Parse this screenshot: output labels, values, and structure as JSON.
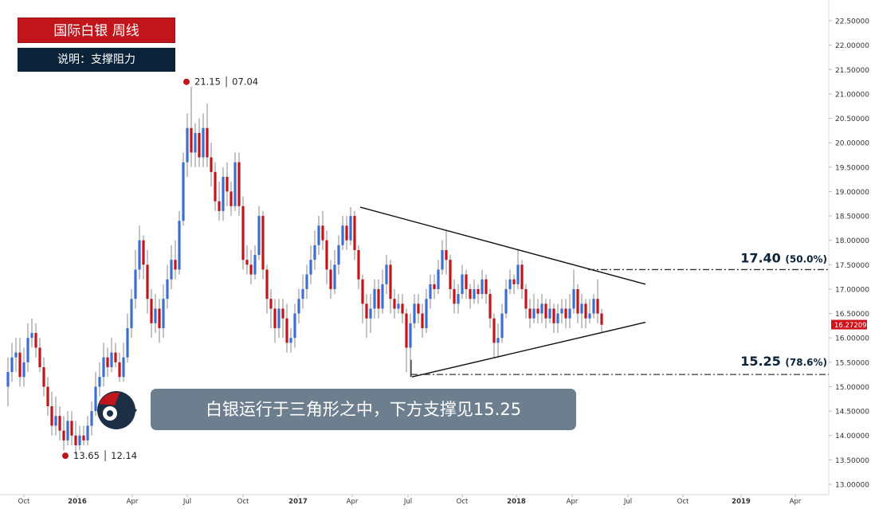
{
  "header": {
    "title": "国际白银  周线",
    "subtitle": "说明：支撑阻力"
  },
  "callout": {
    "text": "白银运行于三角形之中，下方支撑见15.25"
  },
  "colors": {
    "up": "#3d6fd0",
    "down": "#c0151b",
    "title_bg": "#c0151b",
    "subtitle_bg": "#0b2338",
    "callout_bg": "#6d7f8f",
    "price_tag": "#d0121a"
  },
  "chart_data": {
    "type": "candlestick",
    "yaxis": {
      "ylim": [
        12.8,
        22.7
      ],
      "ticks": [
        "13.00000",
        "13.50000",
        "14.00000",
        "14.50000",
        "15.00000",
        "15.50000",
        "16.00000",
        "16.50000",
        "17.00000",
        "17.50000",
        "18.00000",
        "18.50000",
        "19.00000",
        "19.50000",
        "20.00000",
        "20.50000",
        "21.00000",
        "21.50000",
        "22.00000",
        "22.50000"
      ]
    },
    "xaxis": {
      "labels": [
        "Oct",
        "2016",
        "Apr",
        "Jul",
        "Oct",
        "2017",
        "Apr",
        "Jul",
        "Oct",
        "2018",
        "Apr",
        "Jul",
        "Oct",
        "2019",
        "Apr"
      ]
    },
    "last_price": "16.27209",
    "annotations": [
      {
        "label": "21.15 │ 07.04",
        "value": 21.15
      },
      {
        "label": "13.65 │ 12.14",
        "value": 13.65
      }
    ],
    "levels": [
      {
        "price": "17.40",
        "pct": "(50.0%)",
        "value": 17.4
      },
      {
        "price": "15.25",
        "pct": "(78.6%)",
        "value": 15.25
      }
    ],
    "triangle": {
      "upper": {
        "from": 18.68,
        "to": 17.1
      },
      "lower": {
        "from": 15.2,
        "to": 16.32
      }
    },
    "series": [
      {
        "o": 15.0,
        "c": 15.3,
        "h": 15.6,
        "l": 14.6
      },
      {
        "o": 15.3,
        "c": 15.6,
        "h": 15.9,
        "l": 15.1
      },
      {
        "o": 15.6,
        "c": 15.7,
        "h": 16.0,
        "l": 15.3
      },
      {
        "o": 15.7,
        "c": 15.2,
        "h": 16.0,
        "l": 15.0
      },
      {
        "o": 15.2,
        "c": 15.5,
        "h": 15.8,
        "l": 15.0
      },
      {
        "o": 15.5,
        "c": 16.0,
        "h": 16.3,
        "l": 15.3
      },
      {
        "o": 16.0,
        "c": 16.1,
        "h": 16.4,
        "l": 15.8
      },
      {
        "o": 16.1,
        "c": 15.8,
        "h": 16.3,
        "l": 15.6
      },
      {
        "o": 15.8,
        "c": 15.4,
        "h": 16.0,
        "l": 15.3
      },
      {
        "o": 15.4,
        "c": 15.0,
        "h": 15.6,
        "l": 14.8
      },
      {
        "o": 15.0,
        "c": 14.6,
        "h": 15.2,
        "l": 14.4
      },
      {
        "o": 14.6,
        "c": 14.2,
        "h": 14.9,
        "l": 14.0
      },
      {
        "o": 14.2,
        "c": 14.4,
        "h": 14.8,
        "l": 14.0
      },
      {
        "o": 14.4,
        "c": 14.1,
        "h": 14.6,
        "l": 13.9
      },
      {
        "o": 14.1,
        "c": 13.9,
        "h": 14.4,
        "l": 13.7
      },
      {
        "o": 13.9,
        "c": 14.3,
        "h": 14.5,
        "l": 13.8
      },
      {
        "o": 14.3,
        "c": 14.0,
        "h": 14.5,
        "l": 13.8
      },
      {
        "o": 14.0,
        "c": 13.8,
        "h": 14.3,
        "l": 13.6
      },
      {
        "o": 13.8,
        "c": 14.0,
        "h": 14.2,
        "l": 13.7
      },
      {
        "o": 14.0,
        "c": 13.9,
        "h": 14.2,
        "l": 13.8
      },
      {
        "o": 13.9,
        "c": 14.2,
        "h": 14.4,
        "l": 13.8
      },
      {
        "o": 14.2,
        "c": 14.5,
        "h": 14.7,
        "l": 14.0
      },
      {
        "o": 14.5,
        "c": 15.0,
        "h": 15.3,
        "l": 14.4
      },
      {
        "o": 15.0,
        "c": 15.2,
        "h": 15.5,
        "l": 14.8
      },
      {
        "o": 15.2,
        "c": 15.6,
        "h": 15.9,
        "l": 15.0
      },
      {
        "o": 15.6,
        "c": 15.4,
        "h": 15.8,
        "l": 15.2
      },
      {
        "o": 15.4,
        "c": 15.7,
        "h": 16.0,
        "l": 15.3
      },
      {
        "o": 15.7,
        "c": 15.5,
        "h": 15.9,
        "l": 15.4
      },
      {
        "o": 15.5,
        "c": 15.2,
        "h": 15.7,
        "l": 15.1
      },
      {
        "o": 15.2,
        "c": 15.6,
        "h": 15.9,
        "l": 15.1
      },
      {
        "o": 15.6,
        "c": 16.2,
        "h": 16.5,
        "l": 15.5
      },
      {
        "o": 16.2,
        "c": 16.8,
        "h": 17.0,
        "l": 16.0
      },
      {
        "o": 16.8,
        "c": 17.4,
        "h": 17.8,
        "l": 16.6
      },
      {
        "o": 17.4,
        "c": 18.0,
        "h": 18.3,
        "l": 17.2
      },
      {
        "o": 18.0,
        "c": 17.5,
        "h": 18.1,
        "l": 17.2
      },
      {
        "o": 17.5,
        "c": 16.8,
        "h": 17.8,
        "l": 16.5
      },
      {
        "o": 16.8,
        "c": 16.3,
        "h": 17.0,
        "l": 16.0
      },
      {
        "o": 16.3,
        "c": 16.6,
        "h": 16.9,
        "l": 16.1
      },
      {
        "o": 16.6,
        "c": 16.2,
        "h": 16.8,
        "l": 15.9
      },
      {
        "o": 16.2,
        "c": 16.8,
        "h": 17.1,
        "l": 16.0
      },
      {
        "o": 16.8,
        "c": 17.2,
        "h": 17.5,
        "l": 16.6
      },
      {
        "o": 17.2,
        "c": 17.6,
        "h": 17.9,
        "l": 17.0
      },
      {
        "o": 17.6,
        "c": 17.4,
        "h": 18.0,
        "l": 17.2
      },
      {
        "o": 17.4,
        "c": 18.4,
        "h": 18.6,
        "l": 17.3
      },
      {
        "o": 18.4,
        "c": 19.6,
        "h": 19.8,
        "l": 18.3
      },
      {
        "o": 19.6,
        "c": 20.3,
        "h": 20.6,
        "l": 19.3
      },
      {
        "o": 20.3,
        "c": 19.8,
        "h": 21.15,
        "l": 19.5
      },
      {
        "o": 19.8,
        "c": 20.2,
        "h": 20.4,
        "l": 19.5
      },
      {
        "o": 20.2,
        "c": 19.7,
        "h": 20.5,
        "l": 19.5
      },
      {
        "o": 19.7,
        "c": 20.3,
        "h": 20.6,
        "l": 19.5
      },
      {
        "o": 20.3,
        "c": 19.7,
        "h": 20.8,
        "l": 19.5
      },
      {
        "o": 19.7,
        "c": 19.4,
        "h": 20.0,
        "l": 19.1
      },
      {
        "o": 19.4,
        "c": 18.8,
        "h": 19.6,
        "l": 18.6
      },
      {
        "o": 18.8,
        "c": 18.6,
        "h": 19.2,
        "l": 18.4
      },
      {
        "o": 18.6,
        "c": 19.3,
        "h": 19.5,
        "l": 18.4
      },
      {
        "o": 19.3,
        "c": 19.0,
        "h": 19.6,
        "l": 18.7
      },
      {
        "o": 19.0,
        "c": 18.7,
        "h": 19.2,
        "l": 18.5
      },
      {
        "o": 18.7,
        "c": 19.6,
        "h": 19.8,
        "l": 18.6
      },
      {
        "o": 19.6,
        "c": 18.7,
        "h": 19.8,
        "l": 18.5
      },
      {
        "o": 18.7,
        "c": 17.6,
        "h": 18.9,
        "l": 17.4
      },
      {
        "o": 17.6,
        "c": 17.5,
        "h": 17.9,
        "l": 17.3
      },
      {
        "o": 17.5,
        "c": 17.3,
        "h": 17.8,
        "l": 17.1
      },
      {
        "o": 17.3,
        "c": 17.7,
        "h": 17.9,
        "l": 17.2
      },
      {
        "o": 17.7,
        "c": 18.5,
        "h": 18.7,
        "l": 17.6
      },
      {
        "o": 18.5,
        "c": 17.4,
        "h": 18.6,
        "l": 17.2
      },
      {
        "o": 17.4,
        "c": 16.8,
        "h": 17.5,
        "l": 16.5
      },
      {
        "o": 16.8,
        "c": 16.6,
        "h": 17.0,
        "l": 16.2
      },
      {
        "o": 16.6,
        "c": 16.2,
        "h": 16.8,
        "l": 15.9
      },
      {
        "o": 16.2,
        "c": 16.6,
        "h": 16.8,
        "l": 16.0
      },
      {
        "o": 16.6,
        "c": 16.4,
        "h": 16.8,
        "l": 16.0
      },
      {
        "o": 16.4,
        "c": 15.9,
        "h": 16.7,
        "l": 15.7
      },
      {
        "o": 15.9,
        "c": 16.0,
        "h": 16.2,
        "l": 15.7
      },
      {
        "o": 16.0,
        "c": 16.5,
        "h": 16.7,
        "l": 15.8
      },
      {
        "o": 16.5,
        "c": 16.8,
        "h": 17.0,
        "l": 16.3
      },
      {
        "o": 16.8,
        "c": 17.0,
        "h": 17.3,
        "l": 16.6
      },
      {
        "o": 17.0,
        "c": 17.3,
        "h": 17.5,
        "l": 16.8
      },
      {
        "o": 17.3,
        "c": 17.6,
        "h": 17.9,
        "l": 17.1
      },
      {
        "o": 17.6,
        "c": 17.9,
        "h": 18.2,
        "l": 17.4
      },
      {
        "o": 17.9,
        "c": 18.3,
        "h": 18.5,
        "l": 17.7
      },
      {
        "o": 18.3,
        "c": 18.0,
        "h": 18.6,
        "l": 17.8
      },
      {
        "o": 18.0,
        "c": 17.4,
        "h": 18.2,
        "l": 17.1
      },
      {
        "o": 17.4,
        "c": 17.0,
        "h": 17.6,
        "l": 16.8
      },
      {
        "o": 17.0,
        "c": 17.5,
        "h": 17.8,
        "l": 16.9
      },
      {
        "o": 17.5,
        "c": 17.9,
        "h": 18.1,
        "l": 17.3
      },
      {
        "o": 17.9,
        "c": 18.3,
        "h": 18.5,
        "l": 17.8
      },
      {
        "o": 18.3,
        "c": 18.0,
        "h": 18.5,
        "l": 17.8
      },
      {
        "o": 18.0,
        "c": 18.5,
        "h": 18.68,
        "l": 17.9
      },
      {
        "o": 18.5,
        "c": 17.8,
        "h": 18.6,
        "l": 17.6
      },
      {
        "o": 17.8,
        "c": 17.2,
        "h": 17.9,
        "l": 17.0
      },
      {
        "o": 17.2,
        "c": 16.7,
        "h": 17.3,
        "l": 16.3
      },
      {
        "o": 16.7,
        "c": 16.4,
        "h": 16.9,
        "l": 16.0
      },
      {
        "o": 16.4,
        "c": 16.6,
        "h": 16.9,
        "l": 16.1
      },
      {
        "o": 16.6,
        "c": 17.0,
        "h": 17.2,
        "l": 16.4
      },
      {
        "o": 17.0,
        "c": 16.6,
        "h": 17.2,
        "l": 16.4
      },
      {
        "o": 16.6,
        "c": 17.1,
        "h": 17.4,
        "l": 16.5
      },
      {
        "o": 17.1,
        "c": 17.5,
        "h": 17.7,
        "l": 16.9
      },
      {
        "o": 17.5,
        "c": 16.8,
        "h": 17.6,
        "l": 16.5
      },
      {
        "o": 16.8,
        "c": 16.6,
        "h": 17.0,
        "l": 16.4
      },
      {
        "o": 16.6,
        "c": 16.7,
        "h": 16.9,
        "l": 16.5
      },
      {
        "o": 16.7,
        "c": 16.5,
        "h": 16.9,
        "l": 16.3
      },
      {
        "o": 16.5,
        "c": 15.8,
        "h": 16.6,
        "l": 15.3
      },
      {
        "o": 15.8,
        "c": 16.3,
        "h": 16.5,
        "l": 15.2
      },
      {
        "o": 16.3,
        "c": 16.7,
        "h": 16.9,
        "l": 16.2
      },
      {
        "o": 16.7,
        "c": 16.5,
        "h": 16.9,
        "l": 16.3
      },
      {
        "o": 16.5,
        "c": 16.2,
        "h": 16.7,
        "l": 16.0
      },
      {
        "o": 16.2,
        "c": 16.8,
        "h": 17.0,
        "l": 16.1
      },
      {
        "o": 16.8,
        "c": 17.1,
        "h": 17.3,
        "l": 16.6
      },
      {
        "o": 17.1,
        "c": 17.0,
        "h": 17.3,
        "l": 16.8
      },
      {
        "o": 17.0,
        "c": 17.4,
        "h": 17.6,
        "l": 16.9
      },
      {
        "o": 17.4,
        "c": 17.8,
        "h": 18.0,
        "l": 17.3
      },
      {
        "o": 17.8,
        "c": 17.6,
        "h": 18.2,
        "l": 17.3
      },
      {
        "o": 17.6,
        "c": 17.0,
        "h": 17.7,
        "l": 16.8
      },
      {
        "o": 17.0,
        "c": 16.7,
        "h": 17.2,
        "l": 16.5
      },
      {
        "o": 16.7,
        "c": 16.9,
        "h": 17.1,
        "l": 16.5
      },
      {
        "o": 16.9,
        "c": 17.3,
        "h": 17.5,
        "l": 16.8
      },
      {
        "o": 17.3,
        "c": 17.0,
        "h": 17.4,
        "l": 16.8
      },
      {
        "o": 17.0,
        "c": 16.8,
        "h": 17.1,
        "l": 16.6
      },
      {
        "o": 16.8,
        "c": 17.0,
        "h": 17.2,
        "l": 16.7
      },
      {
        "o": 17.0,
        "c": 16.9,
        "h": 17.1,
        "l": 16.7
      },
      {
        "o": 16.9,
        "c": 17.2,
        "h": 17.4,
        "l": 16.8
      },
      {
        "o": 17.2,
        "c": 16.9,
        "h": 17.3,
        "l": 16.7
      },
      {
        "o": 16.9,
        "c": 16.4,
        "h": 17.0,
        "l": 16.2
      },
      {
        "o": 16.4,
        "c": 15.9,
        "h": 16.5,
        "l": 15.6
      },
      {
        "o": 15.9,
        "c": 16.0,
        "h": 16.3,
        "l": 15.6
      },
      {
        "o": 16.0,
        "c": 16.5,
        "h": 16.7,
        "l": 15.9
      },
      {
        "o": 16.5,
        "c": 17.0,
        "h": 17.2,
        "l": 16.4
      },
      {
        "o": 17.0,
        "c": 17.2,
        "h": 17.4,
        "l": 16.9
      },
      {
        "o": 17.2,
        "c": 17.1,
        "h": 17.3,
        "l": 16.9
      },
      {
        "o": 17.1,
        "c": 17.5,
        "h": 17.8,
        "l": 17.0
      },
      {
        "o": 17.5,
        "c": 17.0,
        "h": 17.6,
        "l": 16.8
      },
      {
        "o": 17.0,
        "c": 16.6,
        "h": 17.1,
        "l": 16.4
      },
      {
        "o": 16.6,
        "c": 16.4,
        "h": 16.8,
        "l": 16.2
      },
      {
        "o": 16.4,
        "c": 16.6,
        "h": 16.9,
        "l": 16.3
      },
      {
        "o": 16.6,
        "c": 16.5,
        "h": 16.8,
        "l": 16.3
      },
      {
        "o": 16.5,
        "c": 16.7,
        "h": 16.9,
        "l": 16.3
      },
      {
        "o": 16.7,
        "c": 16.4,
        "h": 16.8,
        "l": 16.2
      },
      {
        "o": 16.4,
        "c": 16.6,
        "h": 16.8,
        "l": 16.3
      },
      {
        "o": 16.6,
        "c": 16.3,
        "h": 16.7,
        "l": 16.1
      },
      {
        "o": 16.3,
        "c": 16.5,
        "h": 16.7,
        "l": 16.1
      },
      {
        "o": 16.5,
        "c": 16.6,
        "h": 16.8,
        "l": 16.3
      },
      {
        "o": 16.6,
        "c": 16.4,
        "h": 16.8,
        "l": 16.2
      },
      {
        "o": 16.4,
        "c": 16.6,
        "h": 16.9,
        "l": 16.2
      },
      {
        "o": 16.6,
        "c": 17.0,
        "h": 17.4,
        "l": 16.5
      },
      {
        "o": 17.0,
        "c": 16.5,
        "h": 17.1,
        "l": 16.3
      },
      {
        "o": 16.5,
        "c": 16.7,
        "h": 16.9,
        "l": 16.2
      },
      {
        "o": 16.7,
        "c": 16.4,
        "h": 16.8,
        "l": 16.2
      },
      {
        "o": 16.4,
        "c": 16.5,
        "h": 16.8,
        "l": 16.3
      },
      {
        "o": 16.5,
        "c": 16.8,
        "h": 16.9,
        "l": 16.4
      },
      {
        "o": 16.8,
        "c": 16.5,
        "h": 17.2,
        "l": 16.3
      },
      {
        "o": 16.5,
        "c": 16.27,
        "h": 16.6,
        "l": 16.1
      }
    ]
  }
}
